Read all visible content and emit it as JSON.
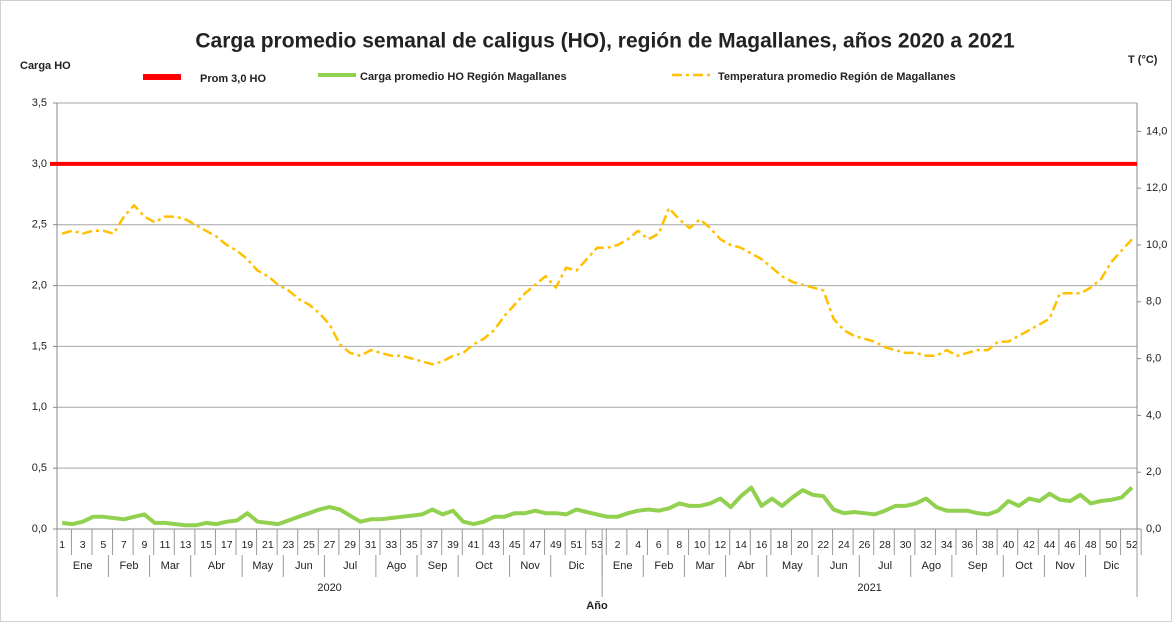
{
  "chart_data": {
    "type": "line",
    "title": "Carga promedio semanal de caligus (HO), región de Magallanes, años 2020 a 2021",
    "y_label": "Carga HO",
    "y2_label": "T (°C)",
    "x_label": "Año",
    "categories": [
      "1",
      null,
      "3",
      null,
      "5",
      null,
      "7",
      null,
      "9",
      null,
      "11",
      null,
      "13",
      null,
      "15",
      null,
      "17",
      null,
      "19",
      null,
      "21",
      null,
      "23",
      null,
      "25",
      null,
      "27",
      null,
      "29",
      null,
      "31",
      null,
      "33",
      null,
      "35",
      null,
      "37",
      null,
      "39",
      null,
      "41",
      null,
      "43",
      null,
      "45",
      null,
      "47",
      null,
      "49",
      null,
      "51",
      null,
      "53",
      null,
      "2",
      null,
      "4",
      null,
      "6",
      null,
      "8",
      null,
      "10",
      null,
      "12",
      null,
      "14",
      null,
      "16",
      null,
      "18",
      null,
      "20",
      null,
      "22",
      null,
      "24",
      null,
      "26",
      null,
      "28",
      null,
      "30",
      null,
      "32",
      null,
      "34",
      null,
      "36",
      null,
      "38",
      null,
      "40",
      null,
      "42",
      null,
      "44",
      null,
      "46",
      null,
      "48",
      null,
      "50",
      null,
      "52"
    ],
    "month_groups": [
      {
        "label": "Ene",
        "count": 5
      },
      {
        "label": "Feb",
        "count": 4
      },
      {
        "label": "Mar",
        "count": 4
      },
      {
        "label": "Abr",
        "count": 5
      },
      {
        "label": "May",
        "count": 4
      },
      {
        "label": "Jun",
        "count": 4
      },
      {
        "label": "Jul",
        "count": 5
      },
      {
        "label": "Ago",
        "count": 4
      },
      {
        "label": "Sep",
        "count": 4
      },
      {
        "label": "Oct",
        "count": 5
      },
      {
        "label": "Nov",
        "count": 4
      },
      {
        "label": "Dic",
        "count": 5
      },
      {
        "label": "Ene",
        "count": 4
      },
      {
        "label": "Feb",
        "count": 4
      },
      {
        "label": "Mar",
        "count": 4
      },
      {
        "label": "Abr",
        "count": 4
      },
      {
        "label": "May",
        "count": 5
      },
      {
        "label": "Jun",
        "count": 4
      },
      {
        "label": "Jul",
        "count": 5
      },
      {
        "label": "Ago",
        "count": 4
      },
      {
        "label": "Sep",
        "count": 5
      },
      {
        "label": "Oct",
        "count": 4
      },
      {
        "label": "Nov",
        "count": 4
      },
      {
        "label": "Dic",
        "count": 5
      }
    ],
    "year_groups": [
      {
        "label": "2020",
        "count": 53
      },
      {
        "label": "2021",
        "count": 52
      }
    ],
    "reference_line": {
      "name": "Prom 3,0 HO",
      "value": 3.0,
      "color": "#ff0000"
    },
    "series": [
      {
        "name": "Carga promedio HO Región Magallanes",
        "color": "#92d050",
        "axis": "y",
        "values": [
          0.05,
          0.04,
          0.06,
          0.1,
          0.1,
          0.09,
          0.08,
          0.1,
          0.12,
          0.05,
          0.05,
          0.04,
          0.03,
          0.03,
          0.05,
          0.04,
          0.06,
          0.07,
          0.13,
          0.06,
          0.05,
          0.04,
          0.07,
          0.1,
          0.13,
          0.16,
          0.18,
          0.16,
          0.11,
          0.06,
          0.08,
          0.08,
          0.09,
          0.1,
          0.11,
          0.12,
          0.16,
          0.12,
          0.15,
          0.06,
          0.04,
          0.06,
          0.1,
          0.1,
          0.13,
          0.13,
          0.15,
          0.13,
          0.13,
          0.12,
          0.16,
          0.14,
          0.12,
          0.1,
          0.1,
          0.13,
          0.15,
          0.16,
          0.15,
          0.17,
          0.21,
          0.19,
          0.19,
          0.21,
          0.25,
          0.18,
          0.27,
          0.34,
          0.19,
          0.25,
          0.19,
          0.26,
          0.32,
          0.28,
          0.27,
          0.16,
          0.13,
          0.14,
          0.13,
          0.12,
          0.15,
          0.19,
          0.19,
          0.21,
          0.25,
          0.18,
          0.15,
          0.15,
          0.15,
          0.13,
          0.12,
          0.15,
          0.23,
          0.19,
          0.25,
          0.23,
          0.29,
          0.24,
          0.23,
          0.28,
          0.21,
          0.23,
          0.24,
          0.26,
          0.34
        ]
      },
      {
        "name": "Temperatura promedio Región de Magallanes",
        "color": "#ffc000",
        "axis": "y2",
        "values": [
          10.4,
          10.5,
          10.4,
          10.5,
          10.5,
          10.4,
          11.0,
          11.4,
          11.0,
          10.8,
          11.0,
          11.0,
          10.9,
          10.7,
          10.5,
          10.3,
          10.0,
          9.8,
          9.5,
          9.1,
          8.9,
          8.6,
          8.4,
          8.1,
          7.9,
          7.6,
          7.2,
          6.5,
          6.2,
          6.1,
          6.3,
          6.2,
          6.1,
          6.1,
          6.0,
          5.9,
          5.8,
          5.9,
          6.1,
          6.2,
          6.5,
          6.7,
          7.0,
          7.5,
          7.9,
          8.3,
          8.6,
          8.9,
          8.5,
          9.2,
          9.1,
          9.5,
          9.9,
          9.9,
          10.0,
          10.2,
          10.5,
          10.2,
          10.4,
          11.3,
          10.9,
          10.6,
          10.9,
          10.6,
          10.2,
          10.0,
          9.9,
          9.7,
          9.5,
          9.2,
          8.9,
          8.7,
          8.6,
          8.5,
          8.4,
          7.4,
          7.0,
          6.8,
          6.7,
          6.6,
          6.4,
          6.3,
          6.2,
          6.2,
          6.1,
          6.1,
          6.3,
          6.1,
          6.2,
          6.3,
          6.3,
          6.6,
          6.6,
          6.8,
          7.0,
          7.2,
          7.4,
          8.3,
          8.3,
          8.3,
          8.5,
          8.8,
          9.4,
          9.8,
          10.2
        ]
      }
    ],
    "ylim": [
      0,
      3.5
    ],
    "yticks": [
      {
        "value": 0,
        "label": "0,0"
      },
      {
        "value": 0.5,
        "label": "0,5"
      },
      {
        "value": 1,
        "label": "1,0"
      },
      {
        "value": 1.5,
        "label": "1,5"
      },
      {
        "value": 2,
        "label": "2,0"
      },
      {
        "value": 2.5,
        "label": "2,5"
      },
      {
        "value": 3,
        "label": "3,0"
      },
      {
        "value": 3.5,
        "label": "3,5"
      }
    ],
    "y2lim": [
      0,
      15
    ],
    "y2ticks": [
      {
        "value": 0,
        "label": "0,0"
      },
      {
        "value": 2,
        "label": "2,0"
      },
      {
        "value": 4,
        "label": "4,0"
      },
      {
        "value": 6,
        "label": "6,0"
      },
      {
        "value": 8,
        "label": "8,0"
      },
      {
        "value": 10,
        "label": "10,0"
      },
      {
        "value": 12,
        "label": "12,0"
      },
      {
        "value": 14,
        "label": "14,0"
      }
    ],
    "grid": true
  }
}
